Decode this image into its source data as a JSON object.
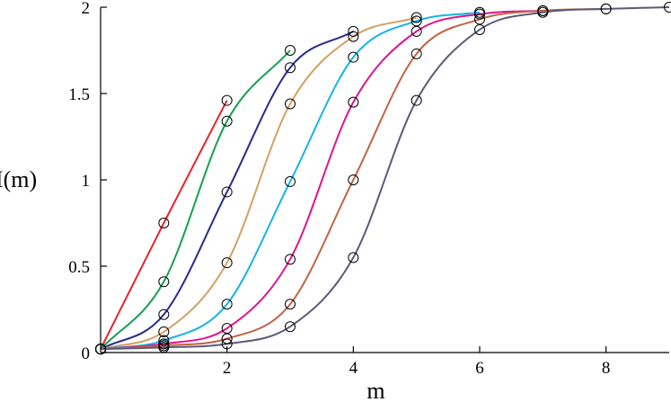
{
  "chart_data": {
    "type": "line",
    "xlabel": "m",
    "ylabel": "I(m)",
    "xlim": [
      0,
      9
    ],
    "ylim": [
      0,
      2
    ],
    "x_ticks": [
      "2",
      "4",
      "6",
      "8"
    ],
    "y_ticks": [
      "0",
      "0.5",
      "1",
      "1.5",
      "2"
    ],
    "grid": false,
    "legend": "none",
    "series": [
      {
        "color": "#e8222a",
        "x_range": [
          0,
          2
        ],
        "points": [
          [
            0,
            0.02
          ],
          [
            1,
            0.75
          ],
          [
            2,
            1.46
          ]
        ]
      },
      {
        "color": "#14a050",
        "x_range": [
          0,
          3
        ],
        "points": [
          [
            0,
            0.02
          ],
          [
            1,
            0.41
          ],
          [
            2,
            1.34
          ],
          [
            3,
            1.75
          ]
        ]
      },
      {
        "color": "#2a2a8c",
        "x_range": [
          0,
          4
        ],
        "points": [
          [
            0,
            0.02
          ],
          [
            1,
            0.22
          ],
          [
            2,
            0.93
          ],
          [
            3,
            1.65
          ],
          [
            4,
            1.86
          ]
        ]
      },
      {
        "color": "#d4a064",
        "x_range": [
          0,
          5
        ],
        "points": [
          [
            0,
            0.02
          ],
          [
            1,
            0.12
          ],
          [
            2,
            0.52
          ],
          [
            3,
            1.44
          ],
          [
            4,
            1.83
          ],
          [
            5,
            1.94
          ]
        ]
      },
      {
        "color": "#14b4e8",
        "x_range": [
          0,
          6
        ],
        "points": [
          [
            0,
            0.02
          ],
          [
            1,
            0.07
          ],
          [
            2,
            0.28
          ],
          [
            3,
            0.99
          ],
          [
            4,
            1.71
          ],
          [
            5,
            1.92
          ],
          [
            6,
            1.97
          ]
        ]
      },
      {
        "color": "#e0148c",
        "x_range": [
          0,
          7
        ],
        "points": [
          [
            0,
            0.02
          ],
          [
            1,
            0.05
          ],
          [
            2,
            0.14
          ],
          [
            3,
            0.54
          ],
          [
            4,
            1.45
          ],
          [
            5,
            1.86
          ],
          [
            6,
            1.96
          ],
          [
            7,
            1.98
          ]
        ]
      },
      {
        "color": "#c06446",
        "x_range": [
          0,
          8
        ],
        "points": [
          [
            0,
            0.02
          ],
          [
            1,
            0.04
          ],
          [
            2,
            0.08
          ],
          [
            3,
            0.28
          ],
          [
            4,
            1.0
          ],
          [
            5,
            1.73
          ],
          [
            6,
            1.93
          ],
          [
            7,
            1.98
          ],
          [
            8,
            1.99
          ]
        ]
      },
      {
        "color": "#5a5a78",
        "x_range": [
          0,
          9
        ],
        "points": [
          [
            0,
            0.02
          ],
          [
            1,
            0.03
          ],
          [
            2,
            0.05
          ],
          [
            3,
            0.15
          ],
          [
            4,
            0.55
          ],
          [
            5,
            1.46
          ],
          [
            6,
            1.87
          ],
          [
            7,
            1.97
          ],
          [
            8,
            1.99
          ],
          [
            9,
            2.0
          ]
        ]
      }
    ]
  }
}
